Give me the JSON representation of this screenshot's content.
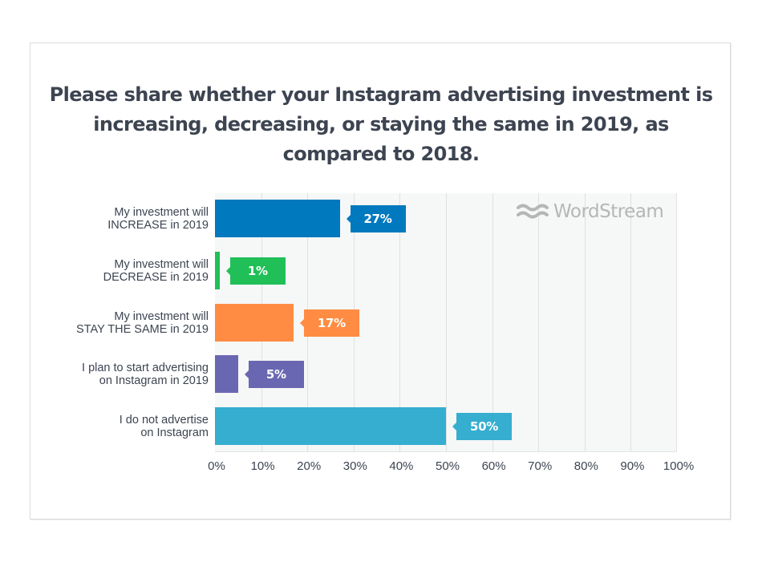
{
  "title": "Please share whether your Instagram advertising investment is increasing, decreasing, or staying the same in 2019, as compared to 2018.",
  "watermark": "WordStream",
  "colors": {
    "increase": "#0079bf",
    "decrease": "#21bf57",
    "same": "#ff8c42",
    "plan": "#6a67b2",
    "none": "#35aed0",
    "text": "#3d4451",
    "plot_bg": "#f6f7f7"
  },
  "bars": [
    {
      "label_line1": "My investment will",
      "label_line2": "INCREASE in 2019",
      "value": 27,
      "display": "27%",
      "color": "#0079bf"
    },
    {
      "label_line1": "My investment will",
      "label_line2": "DECREASE in 2019",
      "value": 1,
      "display": "1%",
      "color": "#21bf57"
    },
    {
      "label_line1": "My investment will",
      "label_line2": "STAY THE SAME in 2019",
      "value": 17,
      "display": "17%",
      "color": "#ff8c42"
    },
    {
      "label_line1": "I plan to start advertising",
      "label_line2": "on Instagram in 2019",
      "value": 5,
      "display": "5%",
      "color": "#6a67b2"
    },
    {
      "label_line1": "I do not advertise",
      "label_line2": "on Instagram",
      "value": 50,
      "display": "50%",
      "color": "#35aed0"
    }
  ],
  "x_ticks": [
    "0%",
    "10%",
    "20%",
    "30%",
    "40%",
    "50%",
    "60%",
    "70%",
    "80%",
    "90%",
    "100%"
  ],
  "chart_data": {
    "type": "bar",
    "orientation": "horizontal",
    "title": "Please share whether your Instagram advertising investment is increasing, decreasing, or staying the same in 2019, as compared to 2018.",
    "categories": [
      "My investment will INCREASE in 2019",
      "My investment will DECREASE in 2019",
      "My investment will STAY THE SAME in 2019",
      "I plan to start advertising on Instagram in 2019",
      "I do not advertise on Instagram"
    ],
    "values": [
      27,
      1,
      17,
      5,
      50
    ],
    "data_labels": [
      "27%",
      "1%",
      "17%",
      "5%",
      "50%"
    ],
    "colors": [
      "#0079bf",
      "#21bf57",
      "#ff8c42",
      "#6a67b2",
      "#35aed0"
    ],
    "xlabel": "",
    "ylabel": "",
    "xlim": [
      0,
      100
    ],
    "x_tick_labels": [
      "0%",
      "10%",
      "20%",
      "30%",
      "40%",
      "50%",
      "60%",
      "70%",
      "80%",
      "90%",
      "100%"
    ],
    "grid": "vertical",
    "legend": "none",
    "watermark": "WordStream"
  }
}
